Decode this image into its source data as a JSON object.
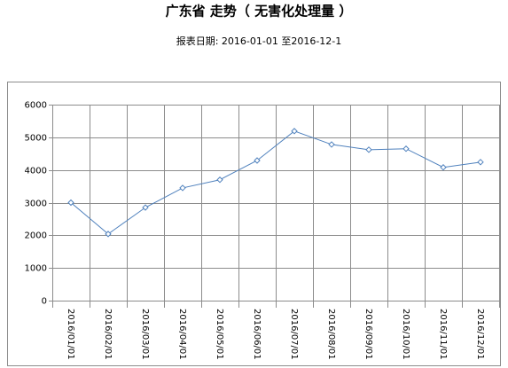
{
  "chart_data": {
    "type": "line",
    "title": "广东省 走势（ 无害化处理量 ）",
    "subtitle": "报表日期: 2016-01-01 至2016-12-1",
    "categories": [
      "2016/01/01",
      "2016/02/01",
      "2016/03/01",
      "2016/04/01",
      "2016/05/01",
      "2016/06/01",
      "2016/07/01",
      "2016/08/01",
      "2016/09/01",
      "2016/10/01",
      "2016/11/01",
      "2016/12/01"
    ],
    "values": [
      3000,
      2040,
      2850,
      3450,
      3700,
      4290,
      5190,
      4780,
      4620,
      4650,
      4080,
      4240
    ],
    "color": "#4f81bd",
    "ylim": [
      0,
      6000
    ],
    "yticks": [
      0,
      1000,
      2000,
      3000,
      4000,
      5000,
      6000
    ],
    "grid": true
  }
}
